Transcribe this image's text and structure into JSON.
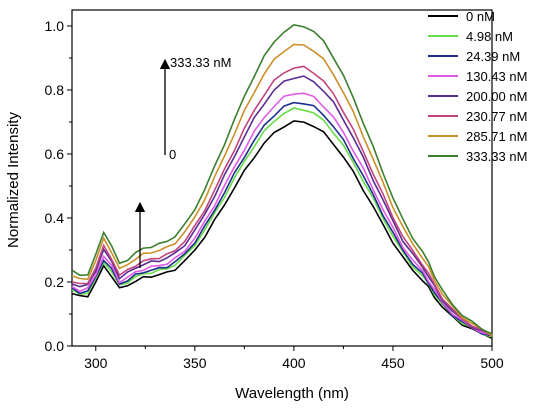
{
  "chart_data": {
    "type": "line",
    "xlabel": "Wavelength (nm)",
    "ylabel": "Normalized Intensity",
    "xlim": [
      288,
      500
    ],
    "ylim": [
      0.0,
      1.05
    ],
    "x_ticks": [
      300,
      350,
      400,
      450,
      500
    ],
    "y_ticks": [
      0.0,
      0.2,
      0.4,
      0.6,
      0.8,
      1.0
    ],
    "x_tick_labels": [
      "300",
      "350",
      "400",
      "450",
      "500"
    ],
    "y_tick_labels": [
      "0.0",
      "0.2",
      "0.4",
      "0.6",
      "0.8",
      "1.0"
    ],
    "grid": false,
    "legend_position": "top-right",
    "x": [
      288,
      292,
      296,
      300,
      304,
      308,
      312,
      316,
      320,
      324,
      328,
      332,
      336,
      340,
      345,
      350,
      355,
      360,
      365,
      370,
      375,
      380,
      385,
      390,
      395,
      400,
      405,
      410,
      415,
      420,
      425,
      430,
      435,
      440,
      445,
      450,
      455,
      460,
      465,
      468,
      471,
      475,
      480,
      485,
      490,
      495,
      500
    ],
    "series": [
      {
        "name": "0 nM",
        "color": "#000000",
        "peak": 0.7
      },
      {
        "name": "4.98 nM",
        "color": "#66dd44",
        "peak": 0.74
      },
      {
        "name": "24.39 nM",
        "color": "#1f2f8f",
        "peak": 0.76
      },
      {
        "name": "130.43 nM",
        "color": "#e15ae8",
        "peak": 0.79
      },
      {
        "name": "200.00 nM",
        "color": "#5a2d91",
        "peak": 0.84
      },
      {
        "name": "230.77 nM",
        "color": "#c0457e",
        "peak": 0.87
      },
      {
        "name": "285.71 nM",
        "color": "#cc8f2a",
        "peak": 0.94
      },
      {
        "name": "333.33 nM",
        "color": "#3b7f2e",
        "peak": 1.0
      }
    ],
    "annotations": {
      "top_label": "333.33 nM",
      "bottom_label": "0"
    }
  }
}
